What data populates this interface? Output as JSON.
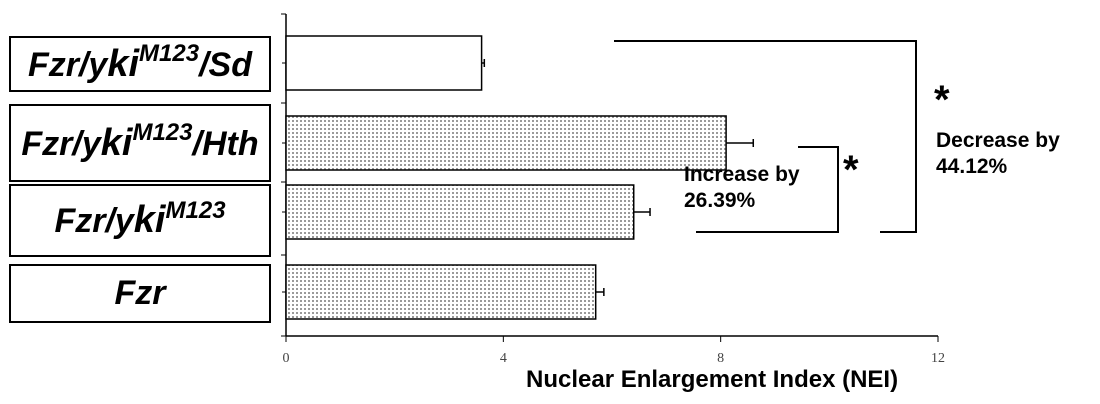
{
  "chart_data": {
    "type": "bar",
    "orientation": "horizontal",
    "categories": [
      {
        "base": "Fzr/y",
        "ki": "ki",
        "sup": "M123",
        "suffix": "/Sd"
      },
      {
        "base": "Fzr/y",
        "ki": "ki",
        "sup": "M123",
        "suffix": "/Hth"
      },
      {
        "base": "Fzr/y",
        "ki": "ki",
        "sup": "M123",
        "suffix": ""
      },
      {
        "base": "Fzr",
        "ki": "",
        "sup": "",
        "suffix": ""
      }
    ],
    "values": [
      3.6,
      8.1,
      6.4,
      5.7
    ],
    "errors": [
      0.05,
      0.5,
      0.3,
      0.15
    ],
    "bar_fills": [
      "#ffffff",
      "#dcdcdc",
      "#dcdcdc",
      "#dcdcdc"
    ],
    "xlabel": "Nuclear Enlargement Index (NEI)",
    "xlim": [
      0,
      12
    ],
    "xticks": [
      "0",
      "4",
      "8",
      "12"
    ],
    "grid": false,
    "annotations": {
      "increase": {
        "line1": "Increase by",
        "line2": "26.39%",
        "star": "*"
      },
      "decrease": {
        "line1": "Decrease by",
        "line2": "44.12%",
        "star": "*"
      }
    }
  }
}
